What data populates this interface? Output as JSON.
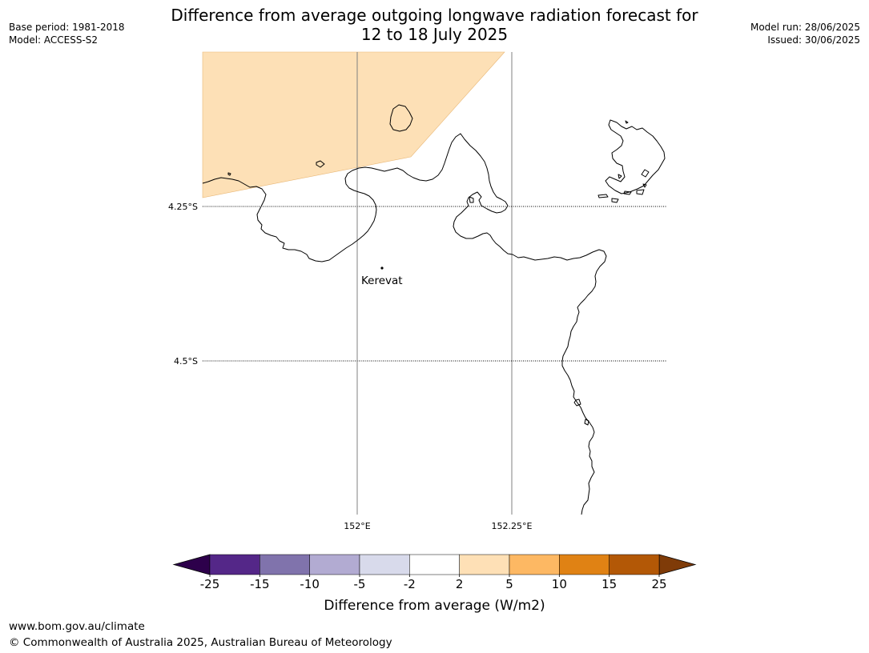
{
  "title": {
    "line1": "Difference from average outgoing longwave radiation forecast for",
    "line2": "12 to 18 July 2025"
  },
  "meta_left": {
    "base_period": "Base period: 1981-2018",
    "model": "Model: ACCESS-S2"
  },
  "meta_right": {
    "model_run": "Model run: 28/06/2025",
    "issued": "Issued: 30/06/2025"
  },
  "map": {
    "lat_labels": [
      "4.25°S",
      "4.5°S"
    ],
    "lon_labels": [
      "152°E",
      "152.25°E"
    ],
    "place": {
      "name": "Kerevat"
    },
    "anomaly_region_color": "#fde0b6"
  },
  "colorbar": {
    "label": "Difference from average (W/m2)",
    "ticks": [
      "-25",
      "-15",
      "-10",
      "-5",
      "-2",
      "2",
      "5",
      "10",
      "15",
      "25"
    ],
    "colors": [
      "#542788",
      "#8073ac",
      "#b2abd2",
      "#d8daeb",
      "#ffffff",
      "#fee0b6",
      "#fdb863",
      "#e08214",
      "#b35806"
    ],
    "under_color": "#2d004b",
    "over_color": "#7f3b08"
  },
  "footer": {
    "url": "www.bom.gov.au/climate",
    "copyright": "© Commonwealth of Australia 2025, Australian Bureau of Meteorology"
  }
}
